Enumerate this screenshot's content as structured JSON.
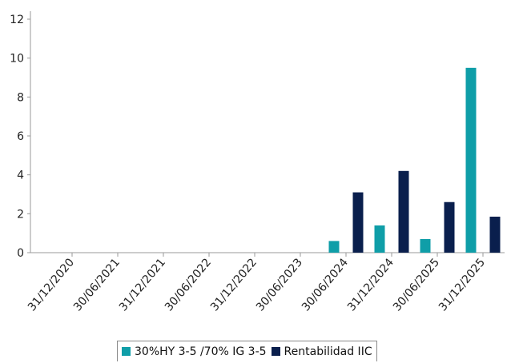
{
  "chart_data": {
    "type": "bar",
    "title": "",
    "xlabel": "",
    "ylabel": "",
    "categories": [
      "31/12/2020",
      "30/06/2021",
      "31/12/2021",
      "30/06/2022",
      "31/12/2022",
      "30/06/2023",
      "30/06/2024",
      "31/12/2024",
      "30/06/2025",
      "31/12/2025"
    ],
    "series": [
      {
        "name": "30%HY 3-5 /70% IG 3-5",
        "color": "#0f9ea8",
        "values": [
          null,
          null,
          null,
          null,
          null,
          null,
          0.6,
          1.4,
          0.7,
          9.5
        ]
      },
      {
        "name": "Rentabilidad IIC",
        "color": "#0a1f4d",
        "values": [
          null,
          null,
          null,
          null,
          null,
          null,
          3.1,
          4.2,
          2.6,
          1.85
        ]
      }
    ],
    "ylim": [
      0,
      12
    ],
    "yticks": [
      0,
      2,
      4,
      6,
      8,
      10,
      12
    ],
    "grid": false,
    "legend_position": "bottom"
  }
}
